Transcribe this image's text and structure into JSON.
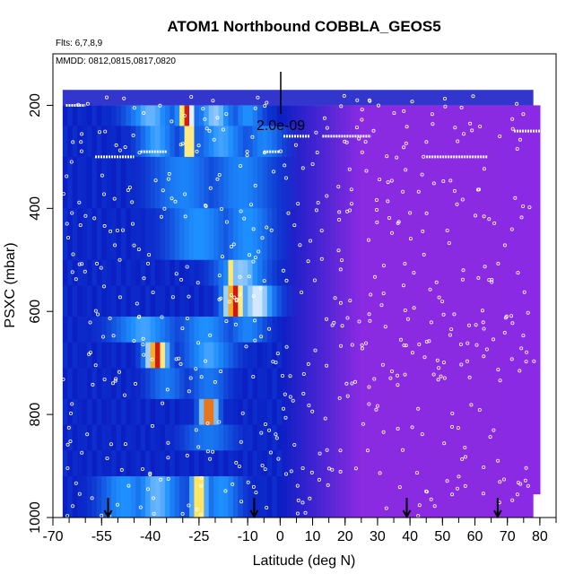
{
  "chart_data": {
    "type": "heatmap",
    "title": "ATOM1 Northbound COBBLA_GEOS5",
    "flights_note": "Flts: 6,7,8,9",
    "dates_note": "MMDD: 0812,0815,0817,0820",
    "scale_label": "2.0e-09",
    "xlabel": "Latitude (deg N)",
    "ylabel": "PSXC (mbar)",
    "xlim": [
      -70,
      85
    ],
    "ylim": [
      1000,
      100
    ],
    "x_ticks": [
      -70,
      -55,
      -40,
      -25,
      -10,
      0,
      10,
      20,
      30,
      40,
      50,
      60,
      70,
      80
    ],
    "y_ticks": [
      200,
      400,
      600,
      800,
      1000
    ],
    "grid": false,
    "colors": {
      "low_south": "#0a1fc4",
      "low_north": "#8a2be2",
      "mid": "#1e90ff",
      "high": "#ffffff",
      "peak": "#d01010",
      "flight_track": "#ffffff",
      "arrow": "#000000"
    },
    "heat_layers": [
      {
        "p_top": 200,
        "p_bot": 240,
        "hotspots": [
          {
            "lat": -40,
            "w": 8,
            "v": 0.55
          },
          {
            "lat": -29,
            "w": 3,
            "v": 1.0
          },
          {
            "lat": -20,
            "w": 6,
            "v": 0.6
          },
          {
            "lat": -10,
            "w": 5,
            "v": 0.45
          }
        ]
      },
      {
        "p_top": 240,
        "p_bot": 300,
        "hotspots": [
          {
            "lat": -38,
            "w": 6,
            "v": 0.5
          },
          {
            "lat": -28,
            "w": 2,
            "v": 0.95
          },
          {
            "lat": -18,
            "w": 8,
            "v": 0.5
          },
          {
            "lat": -5,
            "w": 6,
            "v": 0.4
          }
        ]
      },
      {
        "p_top": 300,
        "p_bot": 400,
        "hotspots": [
          {
            "lat": -30,
            "w": 10,
            "v": 0.4
          },
          {
            "lat": -12,
            "w": 10,
            "v": 0.4
          }
        ]
      },
      {
        "p_top": 400,
        "p_bot": 500,
        "hotspots": [
          {
            "lat": -25,
            "w": 10,
            "v": 0.45
          },
          {
            "lat": -10,
            "w": 8,
            "v": 0.45
          }
        ]
      },
      {
        "p_top": 500,
        "p_bot": 550,
        "hotspots": [
          {
            "lat": -12,
            "w": 8,
            "v": 0.6
          },
          {
            "lat": -15,
            "w": 2,
            "v": 0.85
          }
        ]
      },
      {
        "p_top": 550,
        "p_bot": 610,
        "hotspots": [
          {
            "lat": -14,
            "w": 4,
            "v": 1.0
          },
          {
            "lat": -7,
            "w": 6,
            "v": 0.7
          }
        ]
      },
      {
        "p_top": 610,
        "p_bot": 660,
        "hotspots": [
          {
            "lat": -42,
            "w": 10,
            "v": 0.5
          },
          {
            "lat": -23,
            "w": 8,
            "v": 0.45
          },
          {
            "lat": -10,
            "w": 6,
            "v": 0.4
          }
        ]
      },
      {
        "p_top": 660,
        "p_bot": 710,
        "hotspots": [
          {
            "lat": -38,
            "w": 4,
            "v": 1.0
          },
          {
            "lat": -22,
            "w": 8,
            "v": 0.5
          }
        ]
      },
      {
        "p_top": 710,
        "p_bot": 770,
        "hotspots": [
          {
            "lat": -35,
            "w": 6,
            "v": 0.35
          },
          {
            "lat": -22,
            "w": 6,
            "v": 0.35
          }
        ]
      },
      {
        "p_top": 770,
        "p_bot": 820,
        "hotspots": [
          {
            "lat": -22,
            "w": 3,
            "v": 1.0
          }
        ]
      },
      {
        "p_top": 820,
        "p_bot": 870,
        "hotspots": [
          {
            "lat": -22,
            "w": 8,
            "v": 0.35
          }
        ]
      },
      {
        "p_top": 870,
        "p_bot": 920,
        "hotspots": []
      },
      {
        "p_top": 920,
        "p_bot": 1000,
        "hotspots": [
          {
            "lat": -48,
            "w": 8,
            "v": 0.45
          },
          {
            "lat": -38,
            "w": 8,
            "v": 0.55
          },
          {
            "lat": -25,
            "w": 3,
            "v": 0.9
          },
          {
            "lat": -18,
            "w": 6,
            "v": 0.45
          }
        ]
      }
    ],
    "arrow_lats": [
      -53,
      -8,
      39,
      67
    ]
  }
}
